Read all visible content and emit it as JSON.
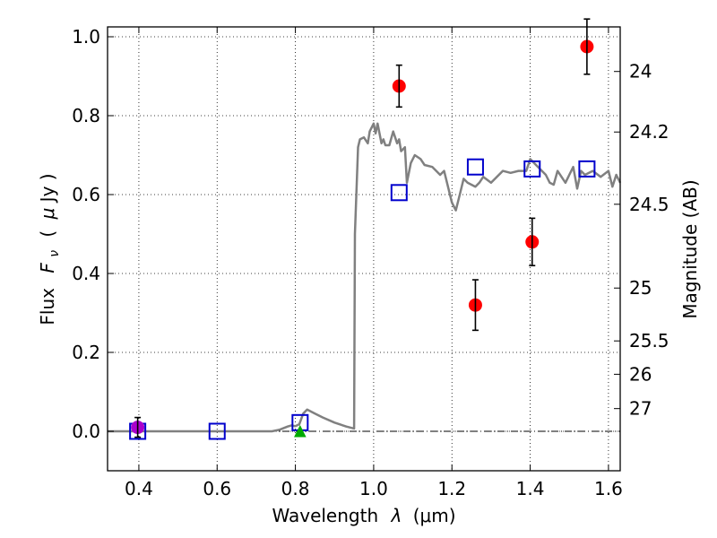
{
  "chart_data": {
    "type": "scatter",
    "xlabel_text": "Wavelength",
    "xlabel_symbol": "λ",
    "xlabel_unit": "(μm)",
    "ylabel_text": "Flux",
    "ylabel_symbol": "F",
    "ylabel_sub": "ν",
    "ylabel_unit_open": "(",
    "ylabel_unit_mu": "μ",
    "ylabel_unit_rest": "Jy )",
    "y2label": "Magnitude (AB)",
    "xlim": [
      0.32,
      1.63
    ],
    "ylim": [
      -0.1,
      1.025
    ],
    "xticks": [
      0.4,
      0.6,
      0.8,
      1.0,
      1.2,
      1.4,
      1.6
    ],
    "xtick_labels": [
      "0.4",
      "0.6",
      "0.8",
      "1.0",
      "1.2",
      "1.4",
      "1.6"
    ],
    "yticks": [
      0.0,
      0.2,
      0.4,
      0.6,
      0.8,
      1.0
    ],
    "ytick_labels": [
      "0.0",
      "0.2",
      "0.4",
      "0.6",
      "0.8",
      "1.0"
    ],
    "mag_ticks": [
      {
        "value": 24.0,
        "label": "24"
      },
      {
        "value": 24.2,
        "label": "24.2"
      },
      {
        "value": 24.5,
        "label": "24.5"
      },
      {
        "value": 25.0,
        "label": "25"
      },
      {
        "value": 25.5,
        "label": "25.5"
      },
      {
        "value": 26.0,
        "label": "26"
      },
      {
        "value": 27.0,
        "label": "27"
      }
    ],
    "grid": true,
    "colors": {
      "model": "#808080",
      "observed": "#ff0000",
      "model_photometry": "#0000cc",
      "magenta": "#aa00cc",
      "green": "#00aa00",
      "errorbar": "#000000"
    },
    "series": [
      {
        "name": "model spectrum",
        "style": "line",
        "x": [
          0.32,
          0.74,
          0.76,
          0.78,
          0.79,
          0.8,
          0.81,
          0.82,
          0.83,
          0.85,
          0.87,
          0.9,
          0.93,
          0.95,
          0.952,
          0.96,
          0.965,
          0.975,
          0.985,
          0.99,
          1.0,
          1.005,
          1.01,
          1.02,
          1.025,
          1.03,
          1.04,
          1.05,
          1.06,
          1.065,
          1.07,
          1.08,
          1.085,
          1.095,
          1.105,
          1.12,
          1.13,
          1.15,
          1.17,
          1.18,
          1.2,
          1.21,
          1.22,
          1.23,
          1.24,
          1.26,
          1.27,
          1.28,
          1.3,
          1.33,
          1.35,
          1.37,
          1.39,
          1.4,
          1.42,
          1.44,
          1.45,
          1.46,
          1.47,
          1.49,
          1.5,
          1.51,
          1.52,
          1.53,
          1.54,
          1.56,
          1.58,
          1.6,
          1.61,
          1.62,
          1.63
        ],
        "y": [
          0.0,
          0.0,
          0.004,
          0.012,
          0.015,
          0.013,
          0.018,
          0.045,
          0.055,
          0.045,
          0.035,
          0.022,
          0.012,
          0.007,
          0.5,
          0.72,
          0.74,
          0.745,
          0.73,
          0.76,
          0.78,
          0.755,
          0.78,
          0.73,
          0.74,
          0.725,
          0.725,
          0.76,
          0.73,
          0.74,
          0.71,
          0.72,
          0.63,
          0.68,
          0.7,
          0.69,
          0.675,
          0.67,
          0.65,
          0.66,
          0.58,
          0.56,
          0.6,
          0.64,
          0.63,
          0.62,
          0.63,
          0.645,
          0.63,
          0.66,
          0.655,
          0.66,
          0.66,
          0.69,
          0.67,
          0.65,
          0.63,
          0.625,
          0.66,
          0.63,
          0.65,
          0.67,
          0.615,
          0.66,
          0.65,
          0.66,
          0.645,
          0.66,
          0.62,
          0.65,
          0.63
        ]
      },
      {
        "name": "observed photometry",
        "style": "circle-with-errorbars",
        "x": [
          1.065,
          1.26,
          1.405,
          1.545
        ],
        "y": [
          0.875,
          0.32,
          0.48,
          0.975
        ],
        "yerr": [
          0.053,
          0.064,
          0.06,
          0.07
        ]
      },
      {
        "name": "model photometry",
        "style": "open-square",
        "x": [
          0.397,
          0.6,
          0.812,
          1.065,
          1.26,
          1.405,
          1.545
        ],
        "y": [
          0.0,
          0.0,
          0.022,
          0.605,
          0.67,
          0.665,
          0.665
        ]
      },
      {
        "name": "magenta point",
        "style": "circle-with-errorbars",
        "x": [
          0.397
        ],
        "y": [
          0.01
        ],
        "yerr": [
          0.025
        ]
      },
      {
        "name": "green point",
        "style": "triangle",
        "x": [
          0.812
        ],
        "y": [
          0.0
        ]
      }
    ]
  }
}
